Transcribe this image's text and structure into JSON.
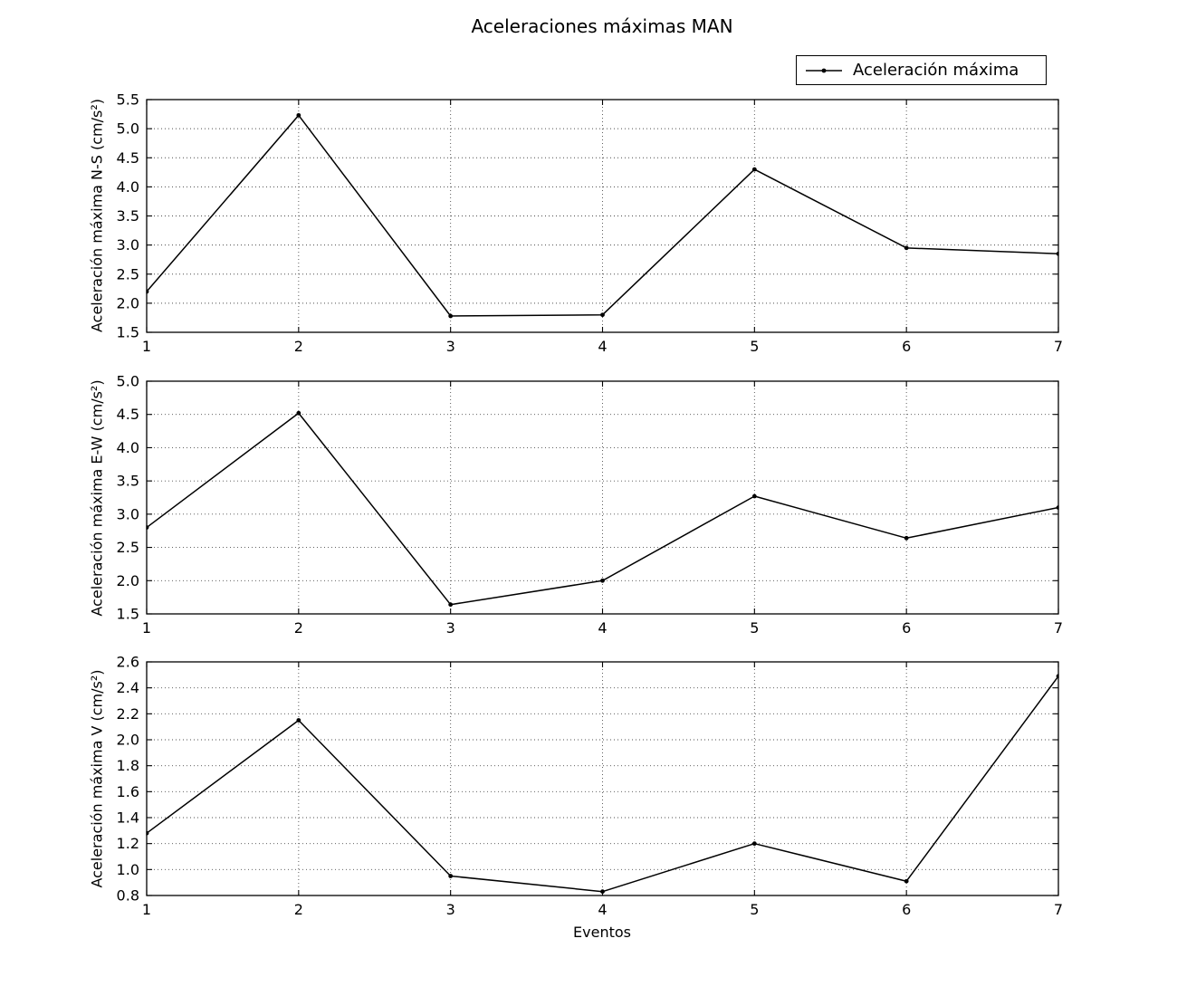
{
  "figure": {
    "title": "Aceleraciones máximas MAN",
    "xlabel": "Eventos",
    "legend": {
      "label": "Aceleración máxima",
      "position": "upper right"
    }
  },
  "colors": {
    "line": "#000000",
    "frame": "#000000",
    "grid": "#4d4d4d",
    "background": "#ffffff",
    "text": "#000000"
  },
  "chart_data": [
    {
      "type": "line",
      "ylabel": "Aceleración máxima N-S (cm/s²)",
      "x": [
        1,
        2,
        3,
        4,
        5,
        6,
        7
      ],
      "series": [
        {
          "name": "Aceleración máxima",
          "values": [
            2.2,
            5.23,
            1.78,
            1.8,
            4.3,
            2.95,
            2.85
          ]
        }
      ],
      "xlim": [
        1,
        7
      ],
      "ylim": [
        1.5,
        5.5
      ],
      "xticks": [
        "1",
        "2",
        "3",
        "4",
        "5",
        "6",
        "7"
      ],
      "yticks": [
        "1.5",
        "2.0",
        "2.5",
        "3.0",
        "3.5",
        "4.0",
        "4.5",
        "5.0",
        "5.5"
      ],
      "grid": "dotted",
      "marker": "point"
    },
    {
      "type": "line",
      "ylabel": "Aceleración máxima E-W (cm/s²)",
      "x": [
        1,
        2,
        3,
        4,
        5,
        6,
        7
      ],
      "series": [
        {
          "name": "Aceleración máxima",
          "values": [
            2.8,
            4.52,
            1.64,
            2.0,
            3.27,
            2.64,
            3.1
          ]
        }
      ],
      "xlim": [
        1,
        7
      ],
      "ylim": [
        1.5,
        5.0
      ],
      "xticks": [
        "1",
        "2",
        "3",
        "4",
        "5",
        "6",
        "7"
      ],
      "yticks": [
        "1.5",
        "2.0",
        "2.5",
        "3.0",
        "3.5",
        "4.0",
        "4.5",
        "5.0"
      ],
      "grid": "dotted",
      "marker": "point"
    },
    {
      "type": "line",
      "ylabel": "Aceleración máxima V (cm/s²)",
      "xlabel": "Eventos",
      "x": [
        1,
        2,
        3,
        4,
        5,
        6,
        7
      ],
      "series": [
        {
          "name": "Aceleración máxima",
          "values": [
            1.28,
            2.15,
            0.95,
            0.83,
            1.2,
            0.91,
            2.49
          ]
        }
      ],
      "xlim": [
        1,
        7
      ],
      "ylim": [
        0.8,
        2.6
      ],
      "xticks": [
        "1",
        "2",
        "3",
        "4",
        "5",
        "6",
        "7"
      ],
      "yticks": [
        "0.8",
        "1.0",
        "1.2",
        "1.4",
        "1.6",
        "1.8",
        "2.0",
        "2.2",
        "2.4",
        "2.6"
      ],
      "grid": "dotted",
      "marker": "point"
    }
  ]
}
